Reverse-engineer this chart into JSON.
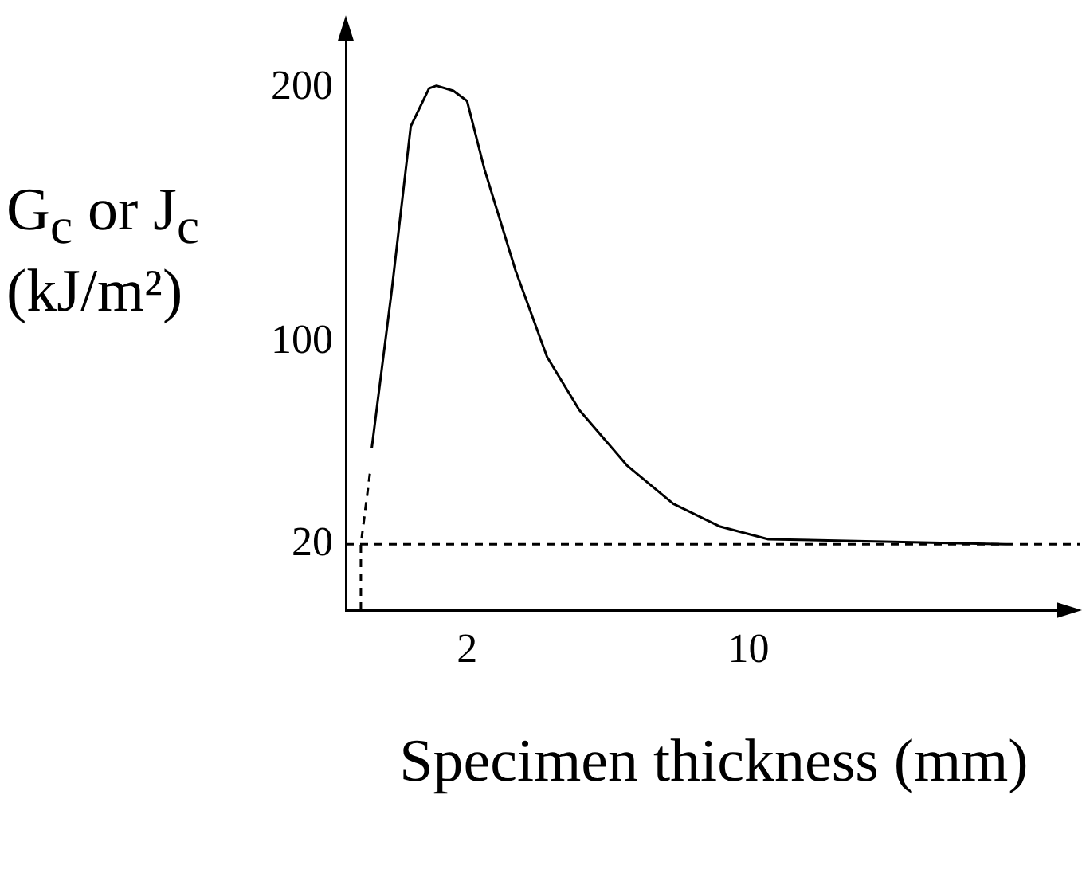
{
  "chart_data": {
    "type": "line",
    "xlabel": "Specimen thickness (mm)",
    "ylabel": "G$_{c}$ or J$_{c}$ (kJ/m²)",
    "log": "x",
    "xlim": [
      1,
      62
    ],
    "xticks": [
      2,
      10
    ],
    "ylim": [
      -6,
      220
    ],
    "yticks": [
      20,
      100,
      200
    ],
    "grid": false,
    "marker": "none",
    "series": [
      {
        "color": "#000000",
        "line_style": "solid",
        "x": [
          1.16,
          1.3,
          1.45,
          1.61,
          1.68,
          1.85,
          2.0,
          2.21,
          2.64,
          3.16,
          3.8,
          5.0,
          6.5,
          8.5,
          11.2,
          43.5
        ],
        "values": [
          58,
          120,
          185,
          200,
          201,
          199,
          195,
          168,
          128,
          94,
          73,
          51,
          36,
          27,
          22,
          20
        ]
      },
      {
        "color": "#000000",
        "line_style": "dashed",
        "x": [
          1.09,
          1.09,
          1.15
        ],
        "values": [
          -6,
          20,
          49
        ]
      }
    ],
    "ref_lines": [
      {
        "axis": "y",
        "value": 20,
        "color": "#000000",
        "line_style": "dashed"
      }
    ]
  }
}
